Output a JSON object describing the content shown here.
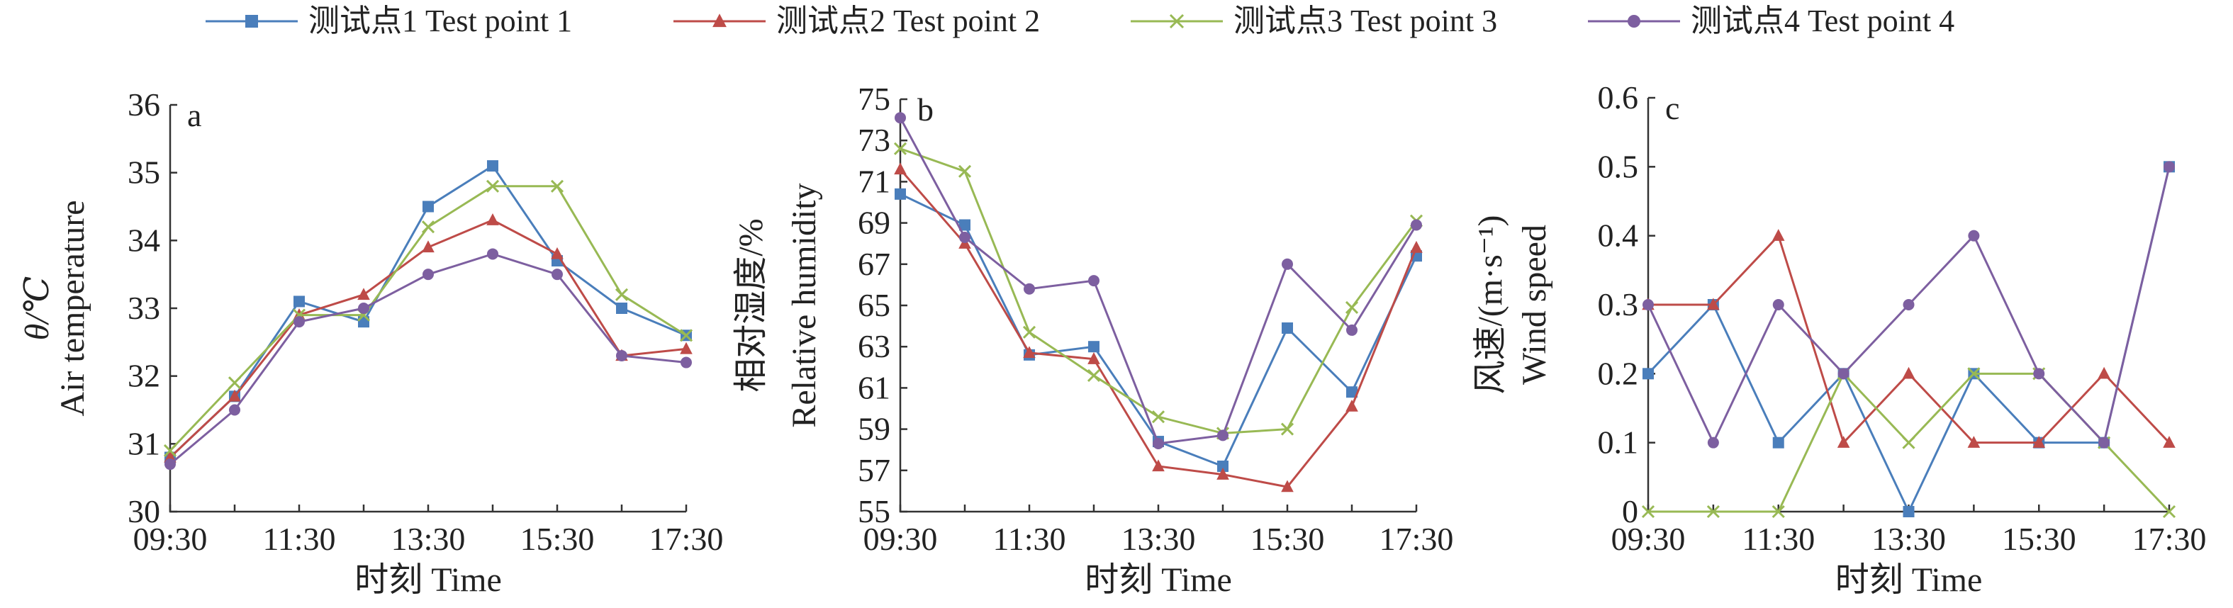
{
  "legend": {
    "placement": "top",
    "items": [
      {
        "label": "测试点1 Test point 1",
        "color": "#4a7ebb",
        "marker": "square"
      },
      {
        "label": "测试点2 Test point 2",
        "color": "#be4b48",
        "marker": "triangle"
      },
      {
        "label": "测试点3 Test point 3",
        "color": "#98b954",
        "marker": "x"
      },
      {
        "label": "测试点4 Test point 4",
        "color": "#7d5fa0",
        "marker": "circle"
      }
    ]
  },
  "chart_data": [
    {
      "type": "line",
      "panel_label": "a",
      "ylabel_symbol": "θ/℃",
      "ylabel": "Air temperature",
      "xlabel": "时刻 Time",
      "x": [
        "09:30",
        "10:30",
        "11:30",
        "12:30",
        "13:30",
        "14:30",
        "15:30",
        "16:30",
        "17:30"
      ],
      "xtick_labels": [
        "09:30",
        "11:30",
        "13:30",
        "15:30",
        "17:30"
      ],
      "ylim": [
        30,
        36
      ],
      "yticks": [
        "30",
        "31",
        "32",
        "33",
        "34",
        "35",
        "36"
      ],
      "grid": false,
      "series": [
        {
          "name": "测试点1 Test point 1",
          "values": [
            30.8,
            31.7,
            33.1,
            32.8,
            34.5,
            35.1,
            33.7,
            33.0,
            32.6
          ]
        },
        {
          "name": "测试点2 Test point 2",
          "values": [
            30.8,
            31.7,
            32.9,
            33.2,
            33.9,
            34.3,
            33.8,
            32.3,
            32.4
          ]
        },
        {
          "name": "测试点3 Test point 3",
          "values": [
            30.9,
            31.9,
            32.9,
            32.9,
            34.2,
            34.8,
            34.8,
            33.2,
            32.6
          ]
        },
        {
          "name": "测试点4 Test point 4",
          "values": [
            30.7,
            31.5,
            32.8,
            33.0,
            33.5,
            33.8,
            33.5,
            32.3,
            32.2
          ]
        }
      ]
    },
    {
      "type": "line",
      "panel_label": "b",
      "ylabel_cn": "相对湿度/%",
      "ylabel": "Relative humidity",
      "xlabel": "时刻 Time",
      "x": [
        "09:30",
        "10:30",
        "11:30",
        "12:30",
        "13:30",
        "14:30",
        "15:30",
        "16:30",
        "17:30"
      ],
      "xtick_labels": [
        "09:30",
        "11:30",
        "13:30",
        "15:30",
        "17:30"
      ],
      "ylim": [
        55,
        75
      ],
      "yticks": [
        "55",
        "57",
        "59",
        "61",
        "63",
        "65",
        "67",
        "69",
        "71",
        "73",
        "75"
      ],
      "grid": false,
      "series": [
        {
          "name": "测试点1 Test point 1",
          "values": [
            70.4,
            68.9,
            62.6,
            63.0,
            58.4,
            57.2,
            63.9,
            60.8,
            67.4
          ]
        },
        {
          "name": "测试点2 Test point 2",
          "values": [
            71.6,
            68.0,
            62.7,
            62.4,
            57.2,
            56.8,
            56.2,
            60.1,
            67.8
          ]
        },
        {
          "name": "测试点3 Test point 3",
          "values": [
            72.6,
            71.5,
            63.7,
            61.6,
            59.6,
            58.8,
            59.0,
            64.9,
            69.1
          ]
        },
        {
          "name": "测试点4 Test point 4",
          "values": [
            74.1,
            68.3,
            65.8,
            66.2,
            58.3,
            58.7,
            67.0,
            63.8,
            68.9
          ]
        }
      ]
    },
    {
      "type": "line",
      "panel_label": "c",
      "ylabel_cn": "风速/(m·s⁻¹)",
      "ylabel": "Wind speed",
      "xlabel": "时刻 Time",
      "x": [
        "09:30",
        "10:30",
        "11:30",
        "12:30",
        "13:30",
        "14:30",
        "15:30",
        "16:30",
        "17:30"
      ],
      "xtick_labels": [
        "09:30",
        "11:30",
        "13:30",
        "15:30",
        "17:30"
      ],
      "ylim": [
        0,
        0.6
      ],
      "yticks": [
        "0",
        "0.1",
        "0.2",
        "0.3",
        "0.4",
        "0.5",
        "0.6"
      ],
      "grid": false,
      "series": [
        {
          "name": "测试点1 Test point 1",
          "values": [
            0.2,
            0.3,
            0.1,
            0.2,
            0.0,
            0.2,
            0.1,
            0.1,
            0.5
          ]
        },
        {
          "name": "测试点2 Test point 2",
          "values": [
            0.3,
            0.3,
            0.4,
            0.1,
            0.2,
            0.1,
            0.1,
            0.2,
            0.1
          ]
        },
        {
          "name": "测试点3 Test point 3",
          "values": [
            0.0,
            0.0,
            0.0,
            0.2,
            0.1,
            0.2,
            0.2,
            0.1,
            0.0
          ]
        },
        {
          "name": "测试点4 Test point 4",
          "values": [
            0.3,
            0.1,
            0.3,
            0.2,
            0.3,
            0.4,
            0.2,
            0.1,
            0.5
          ]
        }
      ]
    }
  ]
}
